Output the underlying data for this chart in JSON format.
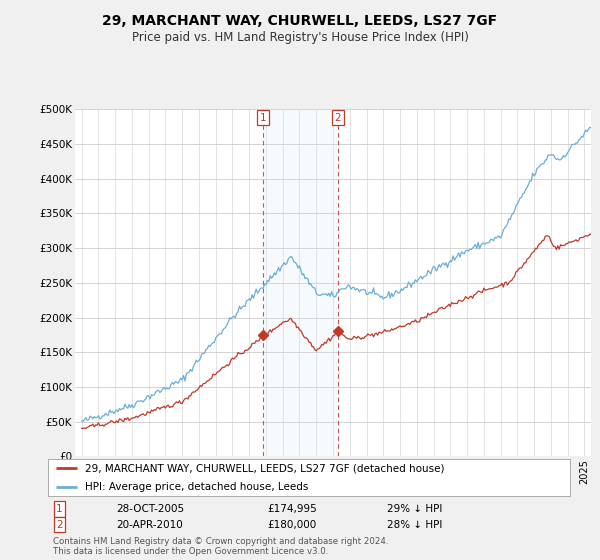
{
  "title": "29, MARCHANT WAY, CHURWELL, LEEDS, LS27 7GF",
  "subtitle": "Price paid vs. HM Land Registry's House Price Index (HPI)",
  "ylim": [
    0,
    500000
  ],
  "yticks": [
    0,
    50000,
    100000,
    150000,
    200000,
    250000,
    300000,
    350000,
    400000,
    450000,
    500000
  ],
  "ytick_labels": [
    "£0",
    "£50K",
    "£100K",
    "£150K",
    "£200K",
    "£250K",
    "£300K",
    "£350K",
    "£400K",
    "£450K",
    "£500K"
  ],
  "hpi_color": "#6baed6",
  "price_color": "#c0392b",
  "sale1_date": 2005.83,
  "sale1_price": 174995,
  "sale2_date": 2010.3,
  "sale2_price": 180000,
  "legend_label_price": "29, MARCHANT WAY, CHURWELL, LEEDS, LS27 7GF (detached house)",
  "legend_label_hpi": "HPI: Average price, detached house, Leeds",
  "annotation1_date_str": "28-OCT-2005",
  "annotation1_price_str": "£174,995",
  "annotation1_hpi_str": "29% ↓ HPI",
  "annotation2_date_str": "20-APR-2010",
  "annotation2_price_str": "£180,000",
  "annotation2_hpi_str": "28% ↓ HPI",
  "footer": "Contains HM Land Registry data © Crown copyright and database right 2024.\nThis data is licensed under the Open Government Licence v3.0.",
  "background_color": "#f0f0f0",
  "plot_bg_color": "#ffffff",
  "shade_color": "#d6e8f5"
}
